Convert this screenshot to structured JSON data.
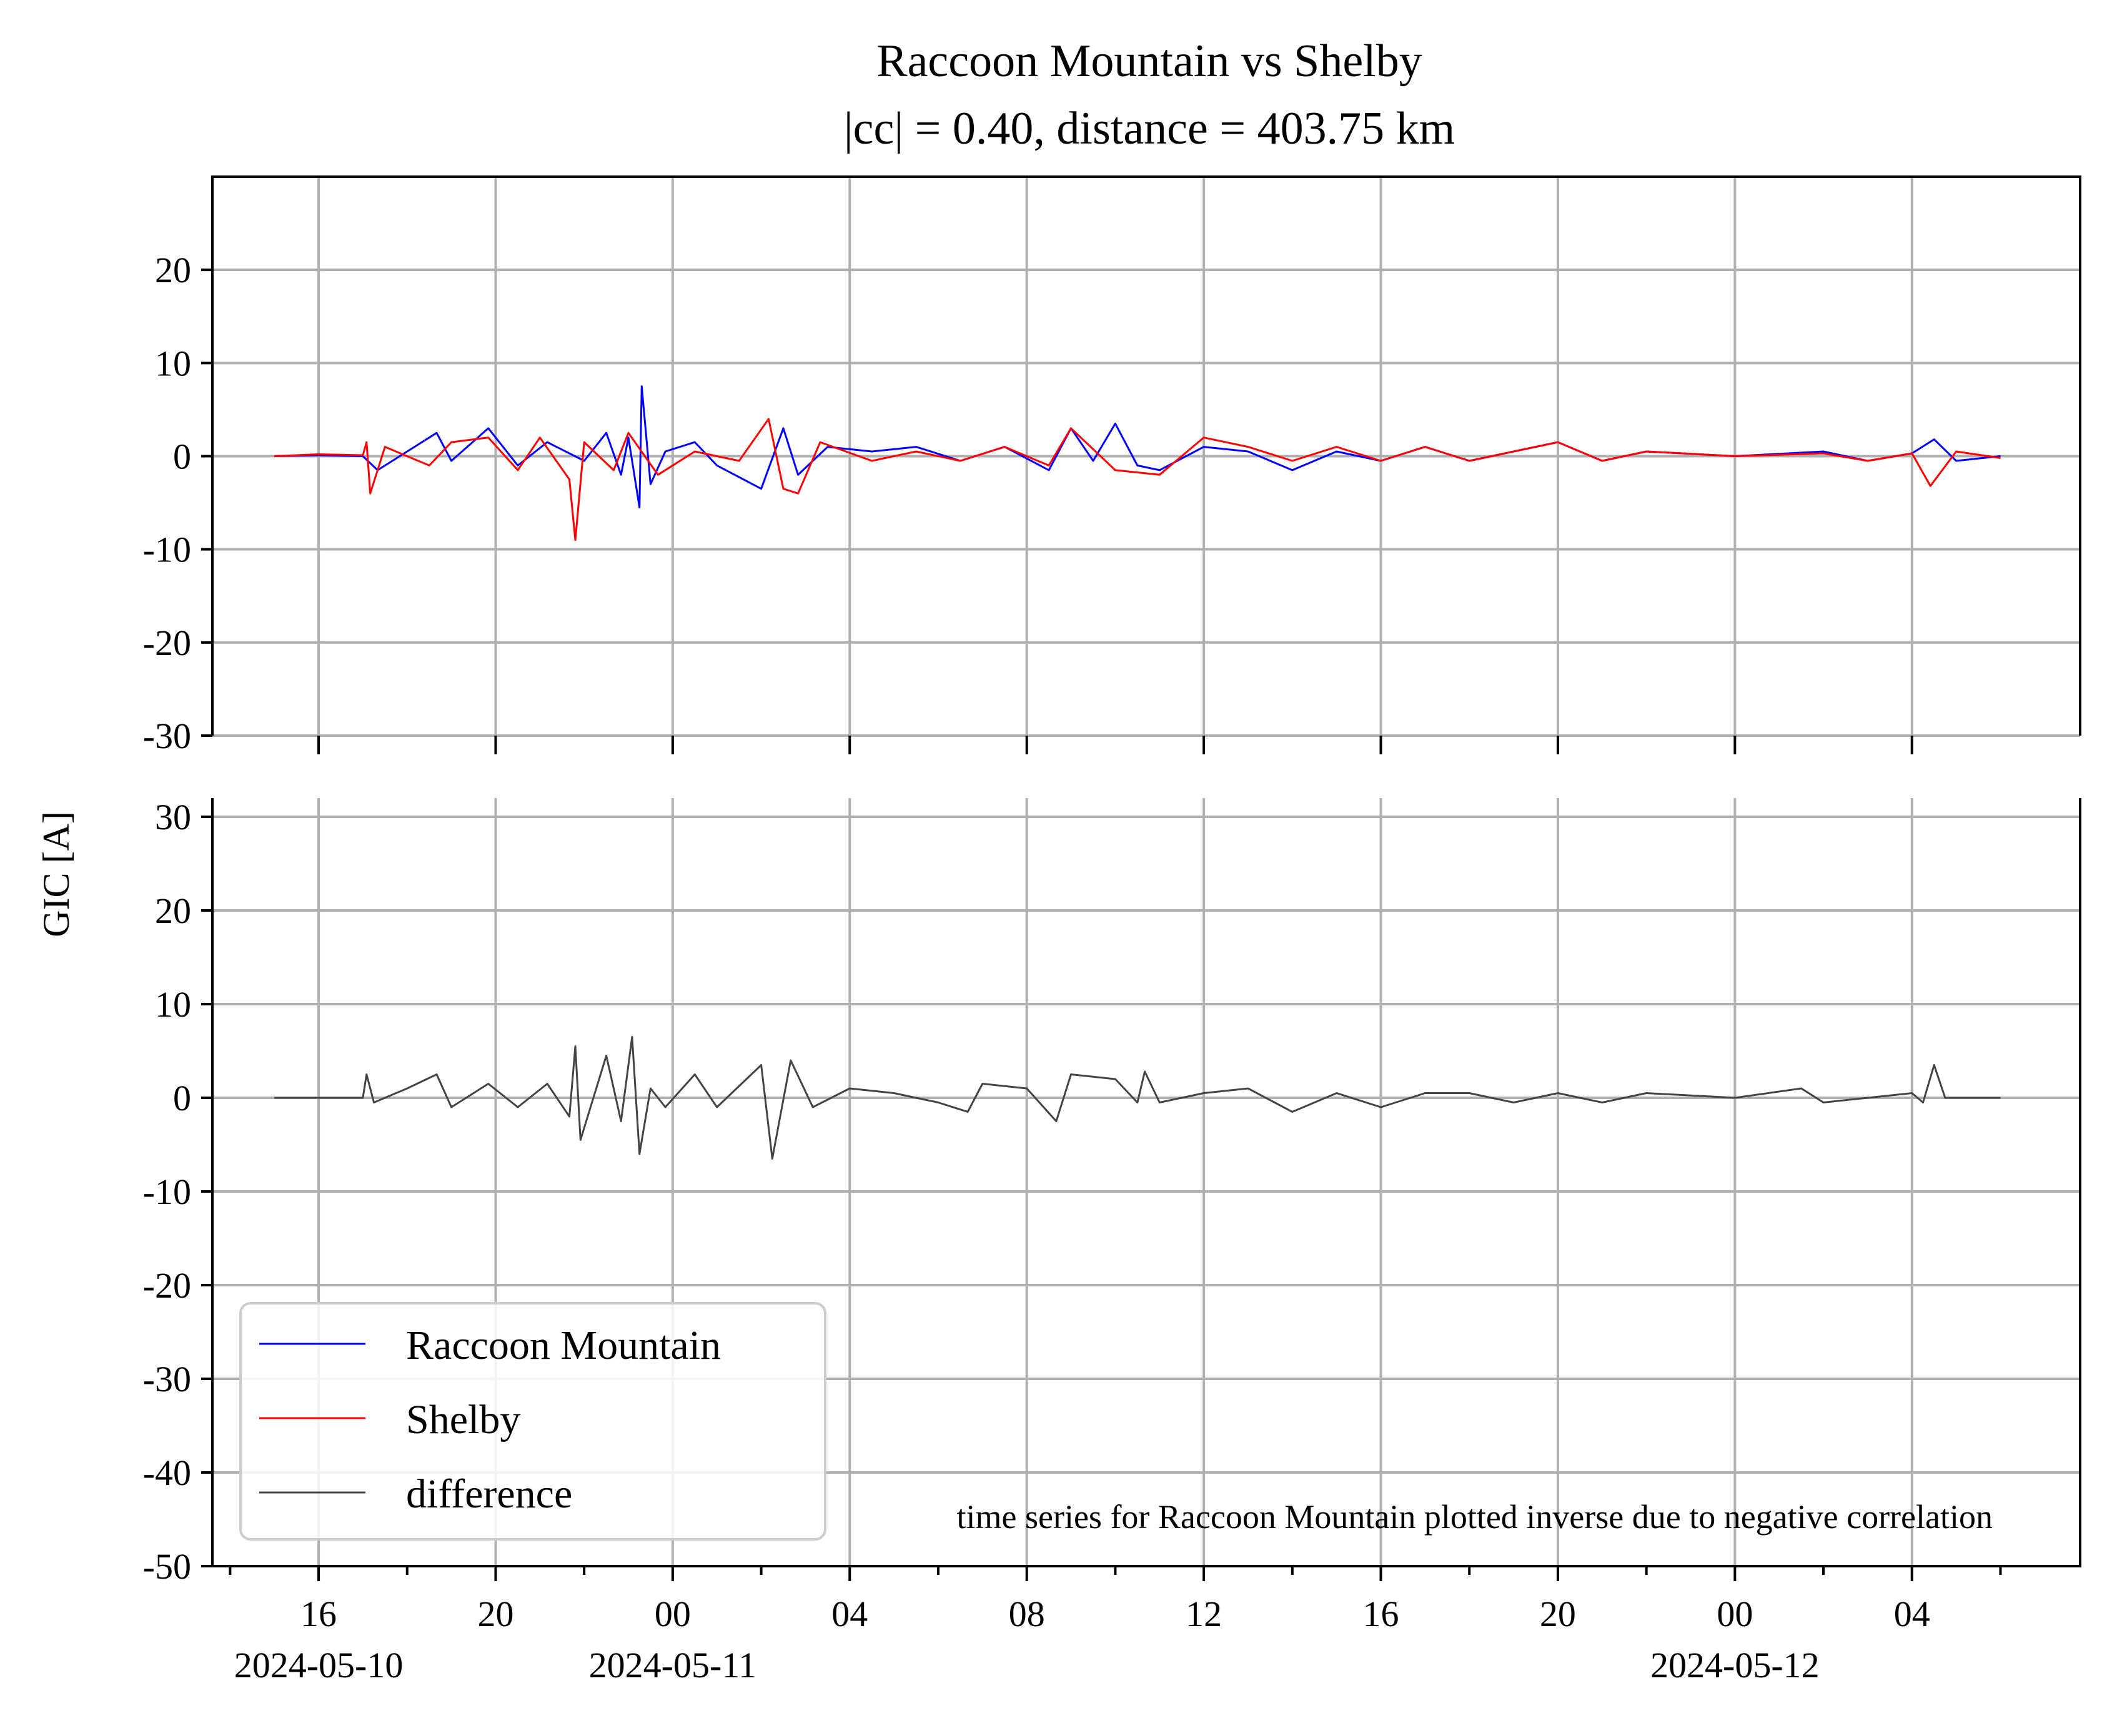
{
  "chart_data": {
    "type": "line",
    "title": "Raccoon Mountain vs Shelby",
    "subtitle": "|cc| = 0.40, distance = 403.75 km",
    "ylabel": "GIC [A]",
    "annotation": "time series for Raccoon Mountain plotted inverse due to negative correlation",
    "grid": true,
    "legend_position": "lower-left",
    "x_axis": {
      "type": "datetime",
      "range": [
        "2024-05-10T13:36",
        "2024-05-12T07:48"
      ],
      "ticks": [
        {
          "t": "2024-05-10T16:00",
          "label": "16",
          "date_label": "2024-05-10"
        },
        {
          "t": "2024-05-10T20:00",
          "label": "20",
          "date_label": ""
        },
        {
          "t": "2024-05-11T00:00",
          "label": "00",
          "date_label": "2024-05-11"
        },
        {
          "t": "2024-05-11T04:00",
          "label": "04",
          "date_label": ""
        },
        {
          "t": "2024-05-11T08:00",
          "label": "08",
          "date_label": ""
        },
        {
          "t": "2024-05-11T12:00",
          "label": "12",
          "date_label": ""
        },
        {
          "t": "2024-05-11T16:00",
          "label": "16",
          "date_label": ""
        },
        {
          "t": "2024-05-11T20:00",
          "label": "20",
          "date_label": ""
        },
        {
          "t": "2024-05-12T00:00",
          "label": "00",
          "date_label": "2024-05-12"
        },
        {
          "t": "2024-05-12T04:00",
          "label": "04",
          "date_label": ""
        }
      ]
    },
    "panels": [
      {
        "name": "top",
        "ylim": [
          -30,
          30
        ],
        "yticks": [
          {
            "v": 20,
            "label": "20"
          },
          {
            "v": 10,
            "label": "10"
          },
          {
            "v": 0,
            "label": "0"
          },
          {
            "v": -10,
            "label": "-10"
          },
          {
            "v": -20,
            "label": "-20"
          },
          {
            "v": -30,
            "label": "-30"
          }
        ],
        "series": [
          {
            "name": "Raccoon Mountain",
            "color": "#0000ff",
            "points": [
              [
                "2024-05-10T15:00",
                0.0
              ],
              [
                "2024-05-10T16:00",
                0.1
              ],
              [
                "2024-05-10T17:00",
                0.0
              ],
              [
                "2024-05-10T17:20",
                -1.5
              ],
              [
                "2024-05-10T18:00",
                0.5
              ],
              [
                "2024-05-10T18:40",
                2.5
              ],
              [
                "2024-05-10T19:00",
                -0.5
              ],
              [
                "2024-05-10T19:50",
                3.0
              ],
              [
                "2024-05-10T20:30",
                -1.0
              ],
              [
                "2024-05-10T21:10",
                1.5
              ],
              [
                "2024-05-10T22:00",
                -0.5
              ],
              [
                "2024-05-10T22:30",
                2.5
              ],
              [
                "2024-05-10T22:50",
                -2.0
              ],
              [
                "2024-05-10T23:00",
                2.0
              ],
              [
                "2024-05-10T23:15",
                -5.5
              ],
              [
                "2024-05-10T23:18",
                7.5
              ],
              [
                "2024-05-10T23:30",
                -3.0
              ],
              [
                "2024-05-10T23:50",
                0.5
              ],
              [
                "2024-05-11T00:30",
                1.5
              ],
              [
                "2024-05-11T01:00",
                -1.0
              ],
              [
                "2024-05-11T02:00",
                -3.5
              ],
              [
                "2024-05-11T02:30",
                3.0
              ],
              [
                "2024-05-11T02:50",
                -2.0
              ],
              [
                "2024-05-11T03:30",
                1.0
              ],
              [
                "2024-05-11T04:30",
                0.5
              ],
              [
                "2024-05-11T05:30",
                1.0
              ],
              [
                "2024-05-11T06:30",
                -0.5
              ],
              [
                "2024-05-11T07:30",
                1.0
              ],
              [
                "2024-05-11T08:30",
                -1.5
              ],
              [
                "2024-05-11T09:00",
                3.0
              ],
              [
                "2024-05-11T09:30",
                -0.5
              ],
              [
                "2024-05-11T10:00",
                3.5
              ],
              [
                "2024-05-11T10:30",
                -1.0
              ],
              [
                "2024-05-11T11:00",
                -1.5
              ],
              [
                "2024-05-11T12:00",
                1.0
              ],
              [
                "2024-05-11T13:00",
                0.5
              ],
              [
                "2024-05-11T14:00",
                -1.5
              ],
              [
                "2024-05-11T15:00",
                0.5
              ],
              [
                "2024-05-11T16:00",
                -0.5
              ],
              [
                "2024-05-11T17:00",
                1.0
              ],
              [
                "2024-05-11T18:00",
                -0.5
              ],
              [
                "2024-05-11T19:00",
                0.5
              ],
              [
                "2024-05-11T20:00",
                1.5
              ],
              [
                "2024-05-11T21:00",
                -0.5
              ],
              [
                "2024-05-11T22:00",
                0.5
              ],
              [
                "2024-05-12T00:00",
                0.0
              ],
              [
                "2024-05-12T02:00",
                0.5
              ],
              [
                "2024-05-12T03:00",
                -0.5
              ],
              [
                "2024-05-12T04:00",
                0.3
              ],
              [
                "2024-05-12T04:30",
                1.8
              ],
              [
                "2024-05-12T05:00",
                -0.5
              ],
              [
                "2024-05-12T06:00",
                0.0
              ]
            ]
          },
          {
            "name": "Shelby",
            "color": "#ff0000",
            "points": [
              [
                "2024-05-10T15:00",
                0.0
              ],
              [
                "2024-05-10T16:00",
                0.2
              ],
              [
                "2024-05-10T17:00",
                0.1
              ],
              [
                "2024-05-10T17:05",
                1.5
              ],
              [
                "2024-05-10T17:10",
                -4.0
              ],
              [
                "2024-05-10T17:30",
                1.0
              ],
              [
                "2024-05-10T18:30",
                -1.0
              ],
              [
                "2024-05-10T19:00",
                1.5
              ],
              [
                "2024-05-10T19:50",
                2.0
              ],
              [
                "2024-05-10T20:30",
                -1.5
              ],
              [
                "2024-05-10T21:00",
                2.0
              ],
              [
                "2024-05-10T21:40",
                -2.5
              ],
              [
                "2024-05-10T21:48",
                -9.0
              ],
              [
                "2024-05-10T22:00",
                1.5
              ],
              [
                "2024-05-10T22:40",
                -1.5
              ],
              [
                "2024-05-10T23:00",
                2.5
              ],
              [
                "2024-05-10T23:40",
                -2.0
              ],
              [
                "2024-05-11T00:30",
                0.5
              ],
              [
                "2024-05-11T01:30",
                -0.5
              ],
              [
                "2024-05-11T02:10",
                4.0
              ],
              [
                "2024-05-11T02:30",
                -3.5
              ],
              [
                "2024-05-11T02:50",
                -4.0
              ],
              [
                "2024-05-11T03:20",
                1.5
              ],
              [
                "2024-05-11T04:30",
                -0.5
              ],
              [
                "2024-05-11T05:30",
                0.5
              ],
              [
                "2024-05-11T06:30",
                -0.5
              ],
              [
                "2024-05-11T07:30",
                1.0
              ],
              [
                "2024-05-11T08:30",
                -1.0
              ],
              [
                "2024-05-11T09:00",
                3.0
              ],
              [
                "2024-05-11T10:00",
                -1.5
              ],
              [
                "2024-05-11T11:00",
                -2.0
              ],
              [
                "2024-05-11T12:00",
                2.0
              ],
              [
                "2024-05-11T13:00",
                1.0
              ],
              [
                "2024-05-11T14:00",
                -0.5
              ],
              [
                "2024-05-11T15:00",
                1.0
              ],
              [
                "2024-05-11T16:00",
                -0.5
              ],
              [
                "2024-05-11T17:00",
                1.0
              ],
              [
                "2024-05-11T18:00",
                -0.5
              ],
              [
                "2024-05-11T19:00",
                0.5
              ],
              [
                "2024-05-11T20:00",
                1.5
              ],
              [
                "2024-05-11T21:00",
                -0.5
              ],
              [
                "2024-05-11T22:00",
                0.5
              ],
              [
                "2024-05-12T00:00",
                0.0
              ],
              [
                "2024-05-12T02:00",
                0.3
              ],
              [
                "2024-05-12T03:00",
                -0.5
              ],
              [
                "2024-05-12T04:00",
                0.3
              ],
              [
                "2024-05-12T04:25",
                -3.2
              ],
              [
                "2024-05-12T05:00",
                0.5
              ],
              [
                "2024-05-12T06:00",
                -0.2
              ]
            ]
          }
        ]
      },
      {
        "name": "bottom",
        "ylim": [
          -50,
          32
        ],
        "yticks": [
          {
            "v": 30,
            "label": "30"
          },
          {
            "v": 20,
            "label": "20"
          },
          {
            "v": 10,
            "label": "10"
          },
          {
            "v": 0,
            "label": "0"
          },
          {
            "v": -10,
            "label": "-10"
          },
          {
            "v": -20,
            "label": "-20"
          },
          {
            "v": -30,
            "label": "-30"
          },
          {
            "v": -40,
            "label": "-40"
          },
          {
            "v": -50,
            "label": "-50"
          }
        ],
        "series": [
          {
            "name": "difference",
            "color": "#444444",
            "points": [
              [
                "2024-05-10T15:00",
                0.0
              ],
              [
                "2024-05-10T16:00",
                0.0
              ],
              [
                "2024-05-10T17:00",
                0.0
              ],
              [
                "2024-05-10T17:05",
                2.5
              ],
              [
                "2024-05-10T17:15",
                -0.5
              ],
              [
                "2024-05-10T18:00",
                1.0
              ],
              [
                "2024-05-10T18:40",
                2.5
              ],
              [
                "2024-05-10T19:00",
                -1.0
              ],
              [
                "2024-05-10T19:50",
                1.5
              ],
              [
                "2024-05-10T20:30",
                -1.0
              ],
              [
                "2024-05-10T21:10",
                1.5
              ],
              [
                "2024-05-10T21:40",
                -2.0
              ],
              [
                "2024-05-10T21:48",
                5.5
              ],
              [
                "2024-05-10T21:55",
                -4.5
              ],
              [
                "2024-05-10T22:30",
                4.5
              ],
              [
                "2024-05-10T22:50",
                -2.5
              ],
              [
                "2024-05-10T23:05",
                6.5
              ],
              [
                "2024-05-10T23:15",
                -6.0
              ],
              [
                "2024-05-10T23:30",
                1.0
              ],
              [
                "2024-05-10T23:50",
                -1.0
              ],
              [
                "2024-05-11T00:30",
                2.5
              ],
              [
                "2024-05-11T01:00",
                -1.0
              ],
              [
                "2024-05-11T02:00",
                3.5
              ],
              [
                "2024-05-11T02:15",
                -6.5
              ],
              [
                "2024-05-11T02:40",
                4.0
              ],
              [
                "2024-05-11T03:10",
                -1.0
              ],
              [
                "2024-05-11T04:00",
                1.0
              ],
              [
                "2024-05-11T05:00",
                0.5
              ],
              [
                "2024-05-11T06:00",
                -0.5
              ],
              [
                "2024-05-11T06:40",
                -1.5
              ],
              [
                "2024-05-11T07:00",
                1.5
              ],
              [
                "2024-05-11T08:00",
                1.0
              ],
              [
                "2024-05-11T08:40",
                -2.5
              ],
              [
                "2024-05-11T09:00",
                2.5
              ],
              [
                "2024-05-11T10:00",
                2.0
              ],
              [
                "2024-05-11T10:30",
                -0.5
              ],
              [
                "2024-05-11T10:40",
                2.8
              ],
              [
                "2024-05-11T11:00",
                -0.5
              ],
              [
                "2024-05-11T12:00",
                0.5
              ],
              [
                "2024-05-11T13:00",
                1.0
              ],
              [
                "2024-05-11T14:00",
                -1.5
              ],
              [
                "2024-05-11T15:00",
                0.5
              ],
              [
                "2024-05-11T16:00",
                -1.0
              ],
              [
                "2024-05-11T17:00",
                0.5
              ],
              [
                "2024-05-11T18:00",
                0.5
              ],
              [
                "2024-05-11T19:00",
                -0.5
              ],
              [
                "2024-05-11T20:00",
                0.5
              ],
              [
                "2024-05-11T21:00",
                -0.5
              ],
              [
                "2024-05-11T22:00",
                0.5
              ],
              [
                "2024-05-12T00:00",
                0.0
              ],
              [
                "2024-05-12T01:30",
                1.0
              ],
              [
                "2024-05-12T02:00",
                -0.5
              ],
              [
                "2024-05-12T03:00",
                0.0
              ],
              [
                "2024-05-12T04:00",
                0.5
              ],
              [
                "2024-05-12T04:15",
                -0.5
              ],
              [
                "2024-05-12T04:30",
                3.5
              ],
              [
                "2024-05-12T04:45",
                0.0
              ],
              [
                "2024-05-12T06:00",
                0.0
              ]
            ]
          }
        ]
      }
    ]
  }
}
